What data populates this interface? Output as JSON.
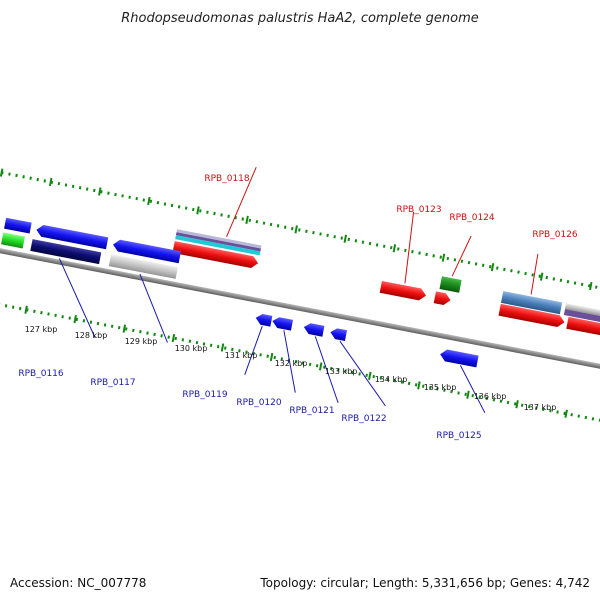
{
  "title": "Rhodopseudomonas palustris HaA2, complete genome",
  "footer": {
    "accession": "Accession: NC_007778",
    "topology": "Topology: circular; Length: 5,331,656 bp; Genes: 4,742"
  },
  "ticks": [
    "127 kbp",
    "128 kbp",
    "129 kbp",
    "130 kbp",
    "131 kbp",
    "132 kbp",
    "133 kbp",
    "134 kbp",
    "135 kbp",
    "136 kbp",
    "137 kbp"
  ],
  "genes_top": [
    "RPB_0118",
    "RPB_0123",
    "RPB_0124",
    "RPB_0126"
  ],
  "genes_bottom": [
    "RPB_0116",
    "RPB_0117",
    "RPB_0119",
    "RPB_0120",
    "RPB_0121",
    "RPB_0122",
    "RPB_0125"
  ],
  "colors": {
    "forward_gene": "#ee1111",
    "reverse_gene": "#1111ee",
    "backbone": "#8a8a8a",
    "tick": "#118811",
    "label_red": "#cc1111",
    "label_blue": "#1a1aaa"
  }
}
